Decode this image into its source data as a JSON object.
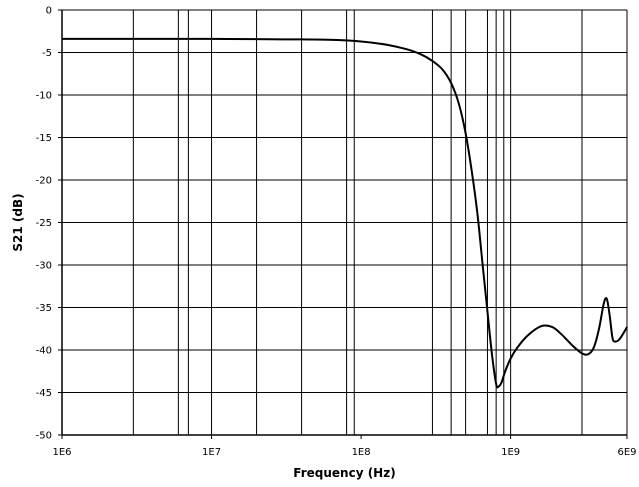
{
  "chart_data": {
    "type": "line",
    "title": "",
    "xlabel": "Frequency (Hz)",
    "ylabel": "S21 (dB)",
    "xscale": "log",
    "xlim": [
      1000000,
      6000000000
    ],
    "ylim": [
      -50,
      0
    ],
    "grid": {
      "horizontal": true,
      "vertical": true
    },
    "x_ticks": [
      {
        "value": 1000000,
        "label": "1E6"
      },
      {
        "value": 10000000,
        "label": "1E7"
      },
      {
        "value": 100000000,
        "label": "1E8"
      },
      {
        "value": 1000000000,
        "label": "1E9"
      },
      {
        "value": 6000000000,
        "label": "6E9"
      }
    ],
    "y_ticks": [
      {
        "value": 0,
        "label": "0"
      },
      {
        "value": -5,
        "label": "-5"
      },
      {
        "value": -10,
        "label": "-10"
      },
      {
        "value": -15,
        "label": "-15"
      },
      {
        "value": -20,
        "label": "-20"
      },
      {
        "value": -25,
        "label": "-25"
      },
      {
        "value": -30,
        "label": "-30"
      },
      {
        "value": -35,
        "label": "-35"
      },
      {
        "value": -40,
        "label": "-40"
      },
      {
        "value": -45,
        "label": "-45"
      },
      {
        "value": -50,
        "label": "-50"
      }
    ],
    "horizontal_gridlines": [
      -50,
      -45,
      -40,
      -35,
      -30,
      -25,
      -20,
      -15,
      -10,
      -5,
      0
    ],
    "vertical_gridlines": [
      1000000,
      3000000,
      6000000,
      7000000,
      10000000,
      20000000,
      40000000,
      80000000,
      90000000,
      300000000,
      400000000,
      500000000,
      700000000,
      800000000,
      900000000,
      1000000000,
      3000000000,
      6000000000
    ],
    "series": [
      {
        "color": "#000000",
        "x": [
          1000000,
          3000000,
          10000000,
          30000000,
          60000000,
          100000000,
          150000000,
          200000000,
          250000000,
          300000000,
          350000000,
          400000000,
          450000000,
          500000000,
          550000000,
          600000000,
          650000000,
          700000000,
          750000000,
          800000000,
          830000000,
          870000000,
          920000000,
          1000000000,
          1100000000,
          1300000000,
          1600000000,
          1900000000,
          2200000000,
          2600000000,
          3000000000,
          3300000000,
          3600000000,
          3900000000,
          4200000000,
          4400000000,
          4600000000,
          4800000000,
          5000000000,
          5300000000,
          5600000000,
          6000000000
        ],
        "y": [
          -3.4,
          -3.4,
          -3.4,
          -3.45,
          -3.5,
          -3.7,
          -4.1,
          -4.6,
          -5.2,
          -6.0,
          -7.0,
          -8.6,
          -11.0,
          -14.5,
          -19.0,
          -24.0,
          -30.0,
          -35.5,
          -40.5,
          -44.0,
          -44.3,
          -43.8,
          -42.5,
          -41.0,
          -39.8,
          -38.3,
          -37.2,
          -37.3,
          -38.2,
          -39.5,
          -40.4,
          -40.5,
          -39.7,
          -37.5,
          -34.5,
          -34.0,
          -36.0,
          -38.6,
          -39.0,
          -38.8,
          -38.2,
          -37.3
        ]
      }
    ]
  }
}
